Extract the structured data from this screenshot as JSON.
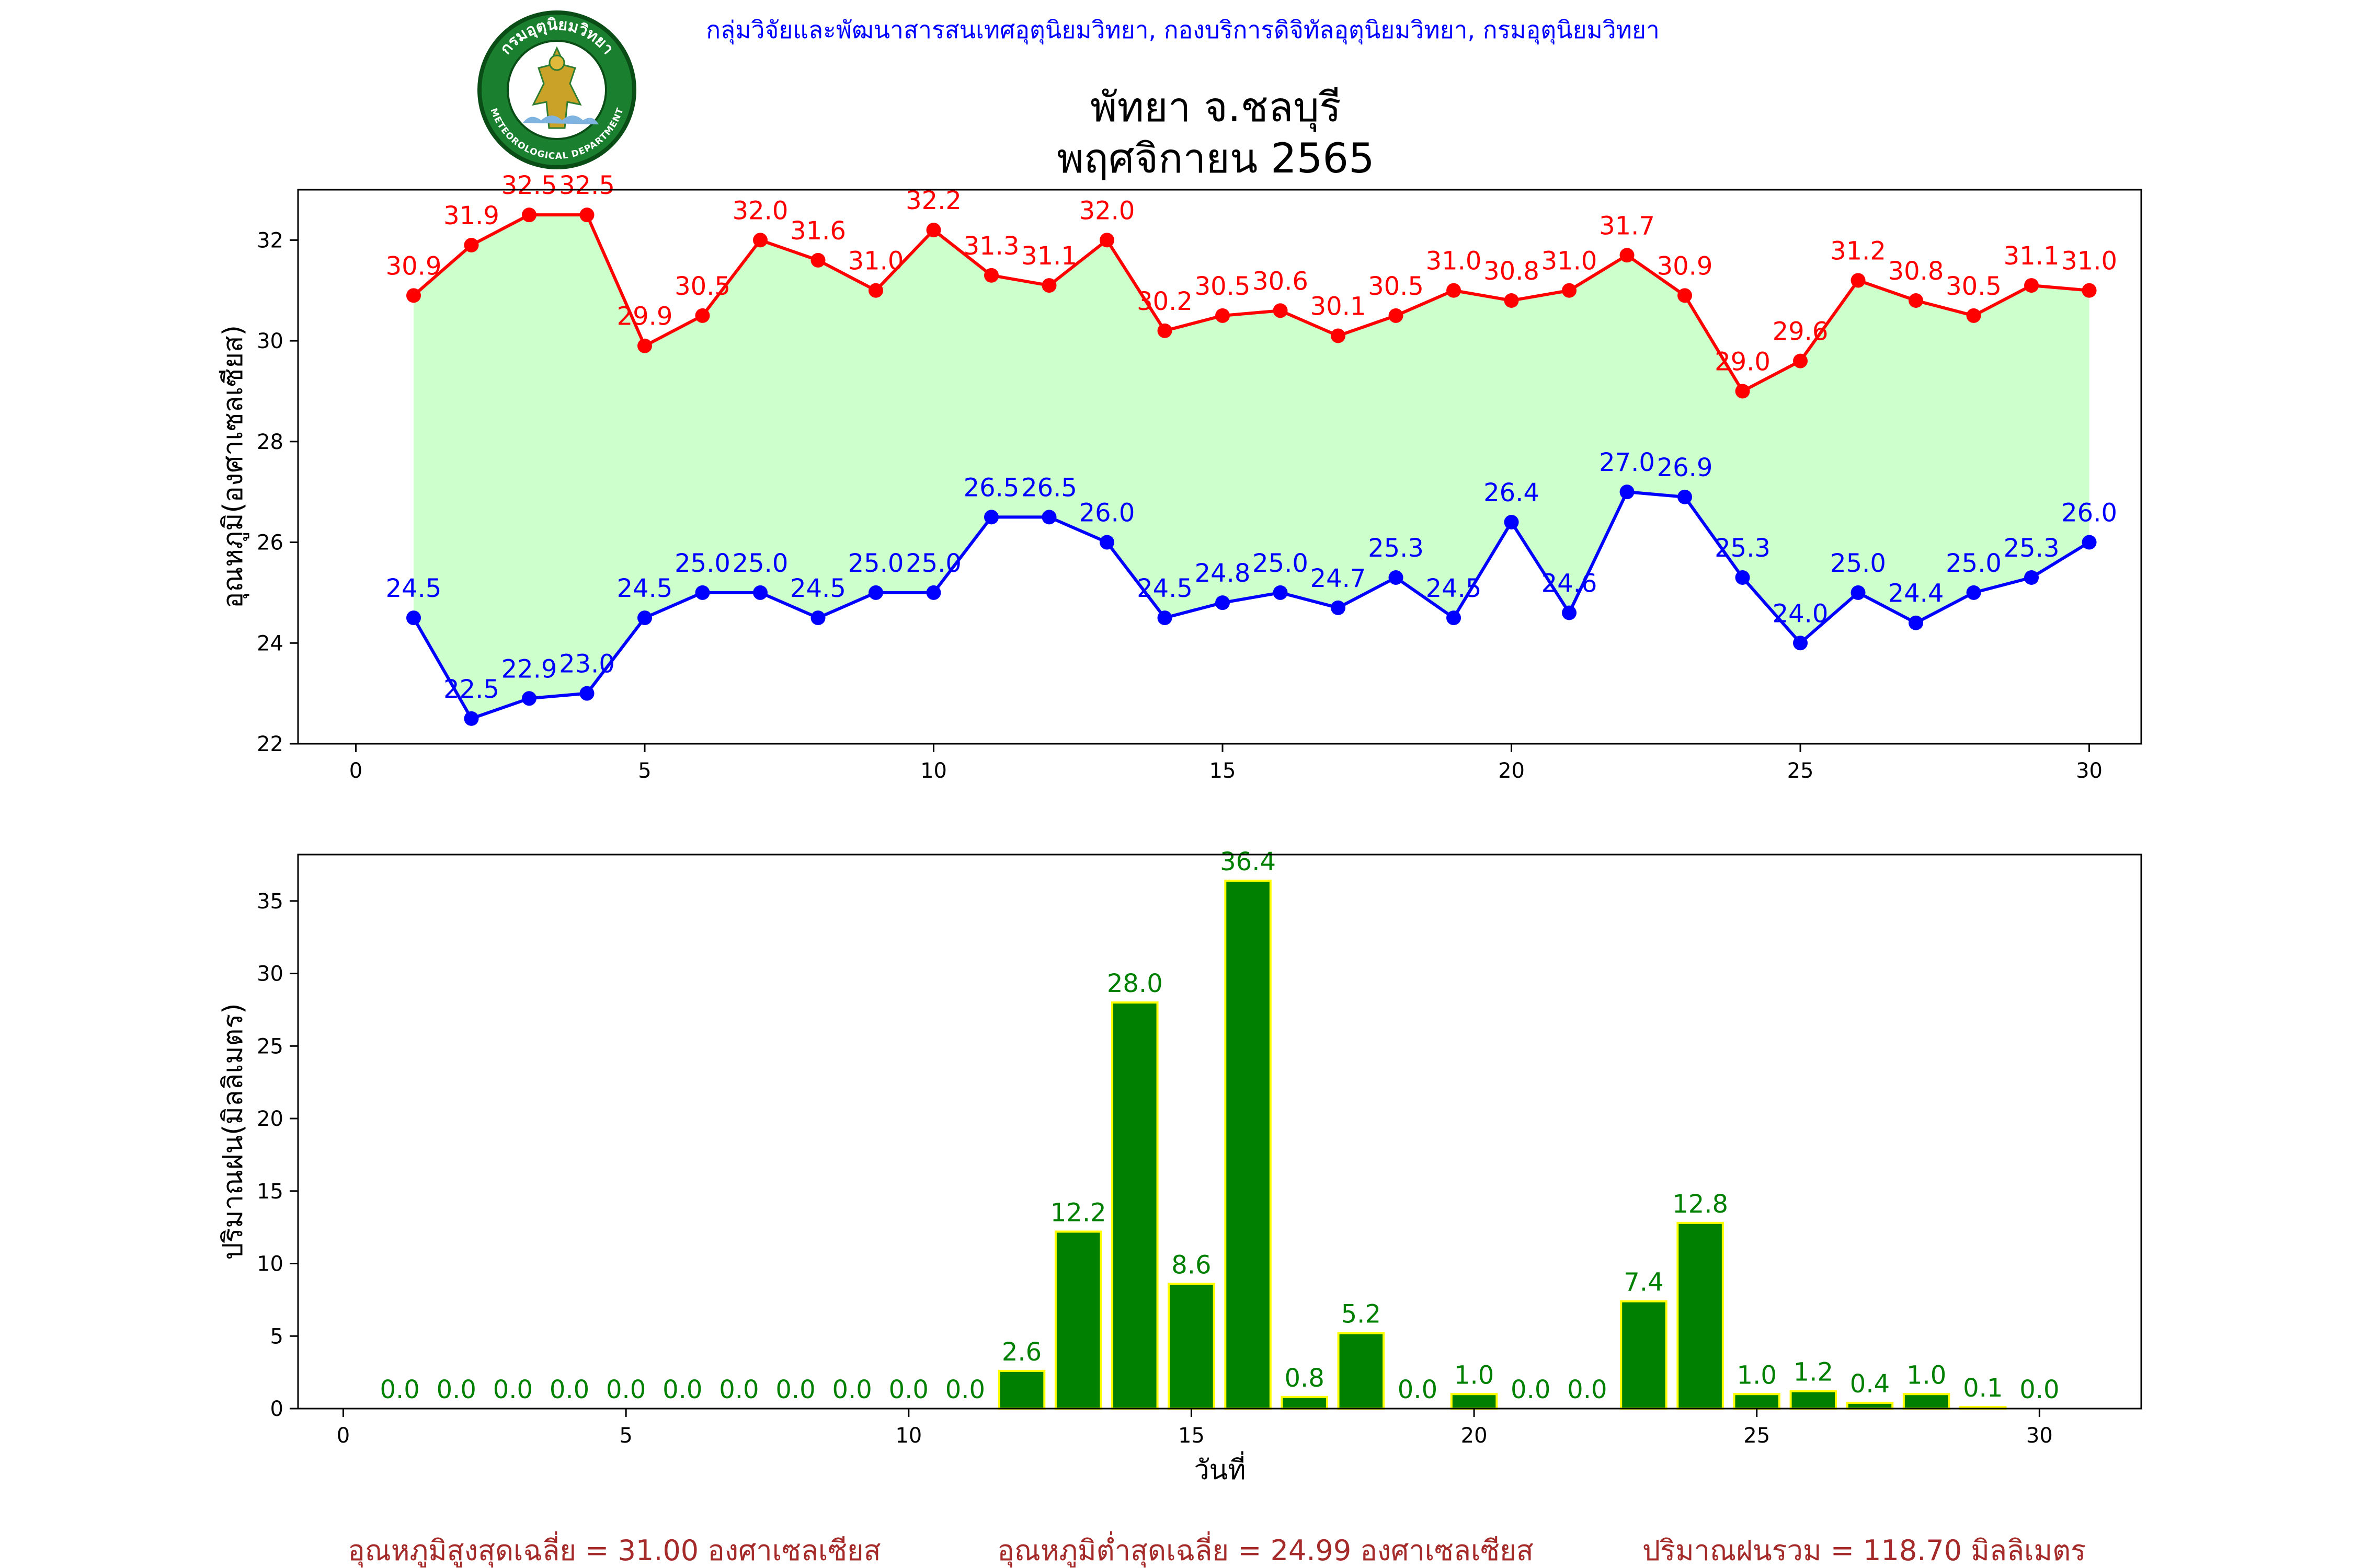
{
  "header": {
    "org_line": "กลุ่มวิจัยและพัฒนาสารสนเทศอุตุนิยมวิทยา, กองบริการดิจิทัลอุตุนิยมวิทยา, กรมอุตุนิยมวิทยา",
    "title_line1": "พัทยา จ.ชลบุรี",
    "title_line2": "พฤศจิกายน 2565"
  },
  "logo": {
    "text_top": "กรมอุตุนิยมวิทยา",
    "text_bottom": "METEOROLOGICAL DEPARTMENT"
  },
  "chart_data": [
    {
      "type": "line",
      "ylabel": "อุณหภูมิ(องศาเซลเซียส)",
      "xlim": [
        -1,
        30.9
      ],
      "ylim": [
        22,
        33
      ],
      "xticks": [
        0,
        5,
        10,
        15,
        20,
        25,
        30
      ],
      "yticks": [
        22,
        24,
        26,
        28,
        30,
        32
      ],
      "grid": false,
      "x": [
        1,
        2,
        3,
        4,
        5,
        6,
        7,
        8,
        9,
        10,
        11,
        12,
        13,
        14,
        15,
        16,
        17,
        18,
        19,
        20,
        21,
        22,
        23,
        24,
        25,
        26,
        27,
        28,
        29,
        30
      ],
      "series": [
        {
          "values": [
            30.9,
            31.9,
            32.5,
            32.5,
            29.9,
            30.5,
            32.0,
            31.6,
            31.0,
            32.2,
            31.3,
            31.1,
            32.0,
            30.2,
            30.5,
            30.6,
            30.1,
            30.5,
            31.0,
            30.8,
            31.0,
            31.7,
            30.9,
            29.0,
            29.6,
            31.2,
            30.8,
            30.5,
            31.1,
            31.0
          ],
          "color": "#ff0000"
        },
        {
          "values": [
            24.5,
            22.5,
            22.9,
            23.0,
            24.5,
            25.0,
            25.0,
            24.5,
            25.0,
            25.0,
            26.5,
            26.5,
            26.0,
            24.5,
            24.8,
            25.0,
            24.7,
            25.3,
            24.5,
            26.4,
            24.6,
            27.0,
            26.9,
            25.3,
            24.0,
            25.0,
            24.4,
            25.0,
            25.3,
            26.0
          ],
          "color": "#0000ff"
        }
      ],
      "fill_between_color": "#ccffcc"
    },
    {
      "type": "bar",
      "xlabel": "วันที่",
      "ylabel": "ปริมาณฝน(มิลลิเมตร)",
      "xlim": [
        -0.8,
        31.8
      ],
      "ylim": [
        0,
        38.2
      ],
      "xticks": [
        0,
        5,
        10,
        15,
        20,
        25,
        30
      ],
      "yticks": [
        0,
        5,
        10,
        15,
        20,
        25,
        30,
        35
      ],
      "grid": false,
      "x": [
        1,
        2,
        3,
        4,
        5,
        6,
        7,
        8,
        9,
        10,
        11,
        12,
        13,
        14,
        15,
        16,
        17,
        18,
        19,
        20,
        21,
        22,
        23,
        24,
        25,
        26,
        27,
        28,
        29,
        30
      ],
      "values": [
        0.0,
        0.0,
        0.0,
        0.0,
        0.0,
        0.0,
        0.0,
        0.0,
        0.0,
        0.0,
        0.0,
        2.6,
        12.2,
        28.0,
        8.6,
        36.4,
        0.8,
        5.2,
        0.0,
        1.0,
        0.0,
        0.0,
        7.4,
        12.8,
        1.0,
        1.2,
        0.4,
        1.0,
        0.1,
        0.0
      ],
      "bar_color": "#008000",
      "edge_color": "#ffff00"
    }
  ],
  "footer": {
    "avg_max": "อุณหภูมิสูงสุดเฉลี่ย = 31.00 องศาเซลเซียส",
    "avg_min": "อุณหภูมิต่ำสุดเฉลี่ย = 24.99 องศาเซลเซียส",
    "total_rain": "ปริมาณฝนรวม = 118.70 มิลลิเมตร"
  },
  "colors": {
    "org_line": "#0000ff",
    "title": "#000000",
    "footer": "#a52a2a",
    "rain_label": "#008000"
  }
}
